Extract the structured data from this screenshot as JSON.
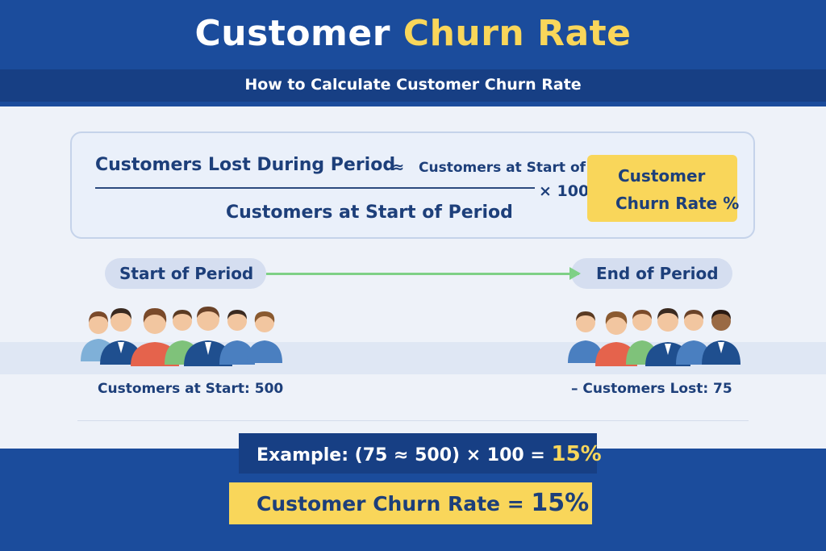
{
  "header": {
    "title_main": "Customer",
    "title_accent": "Churn Rate",
    "subtitle": "How to Calculate Customer Churn Rate"
  },
  "formula": {
    "numerator": "Customers Lost During Period",
    "approx_symbol": "≈",
    "numerator_extra": "Customers at Start of",
    "multiplier": "× 100",
    "denominator": "Customers at Start of Period",
    "result_line1": "Customer",
    "result_line2": "Churn Rate %"
  },
  "timeline": {
    "start_label": "Start of Period",
    "end_label": "End of Period"
  },
  "stats": {
    "start_text": "Customers at Start: 500",
    "end_text": "– Customers Lost: 75"
  },
  "example": {
    "expression": "Example:  (75 ≈ 500) × 100 = ",
    "result": "15%"
  },
  "result": {
    "label": "Customer Churn Rate = ",
    "value": "15%"
  },
  "colors": {
    "primary_blue": "#1b4c9c",
    "accent_yellow": "#f9d65a",
    "text_navy": "#1d3f7a",
    "arrow_green": "#7ed086"
  }
}
